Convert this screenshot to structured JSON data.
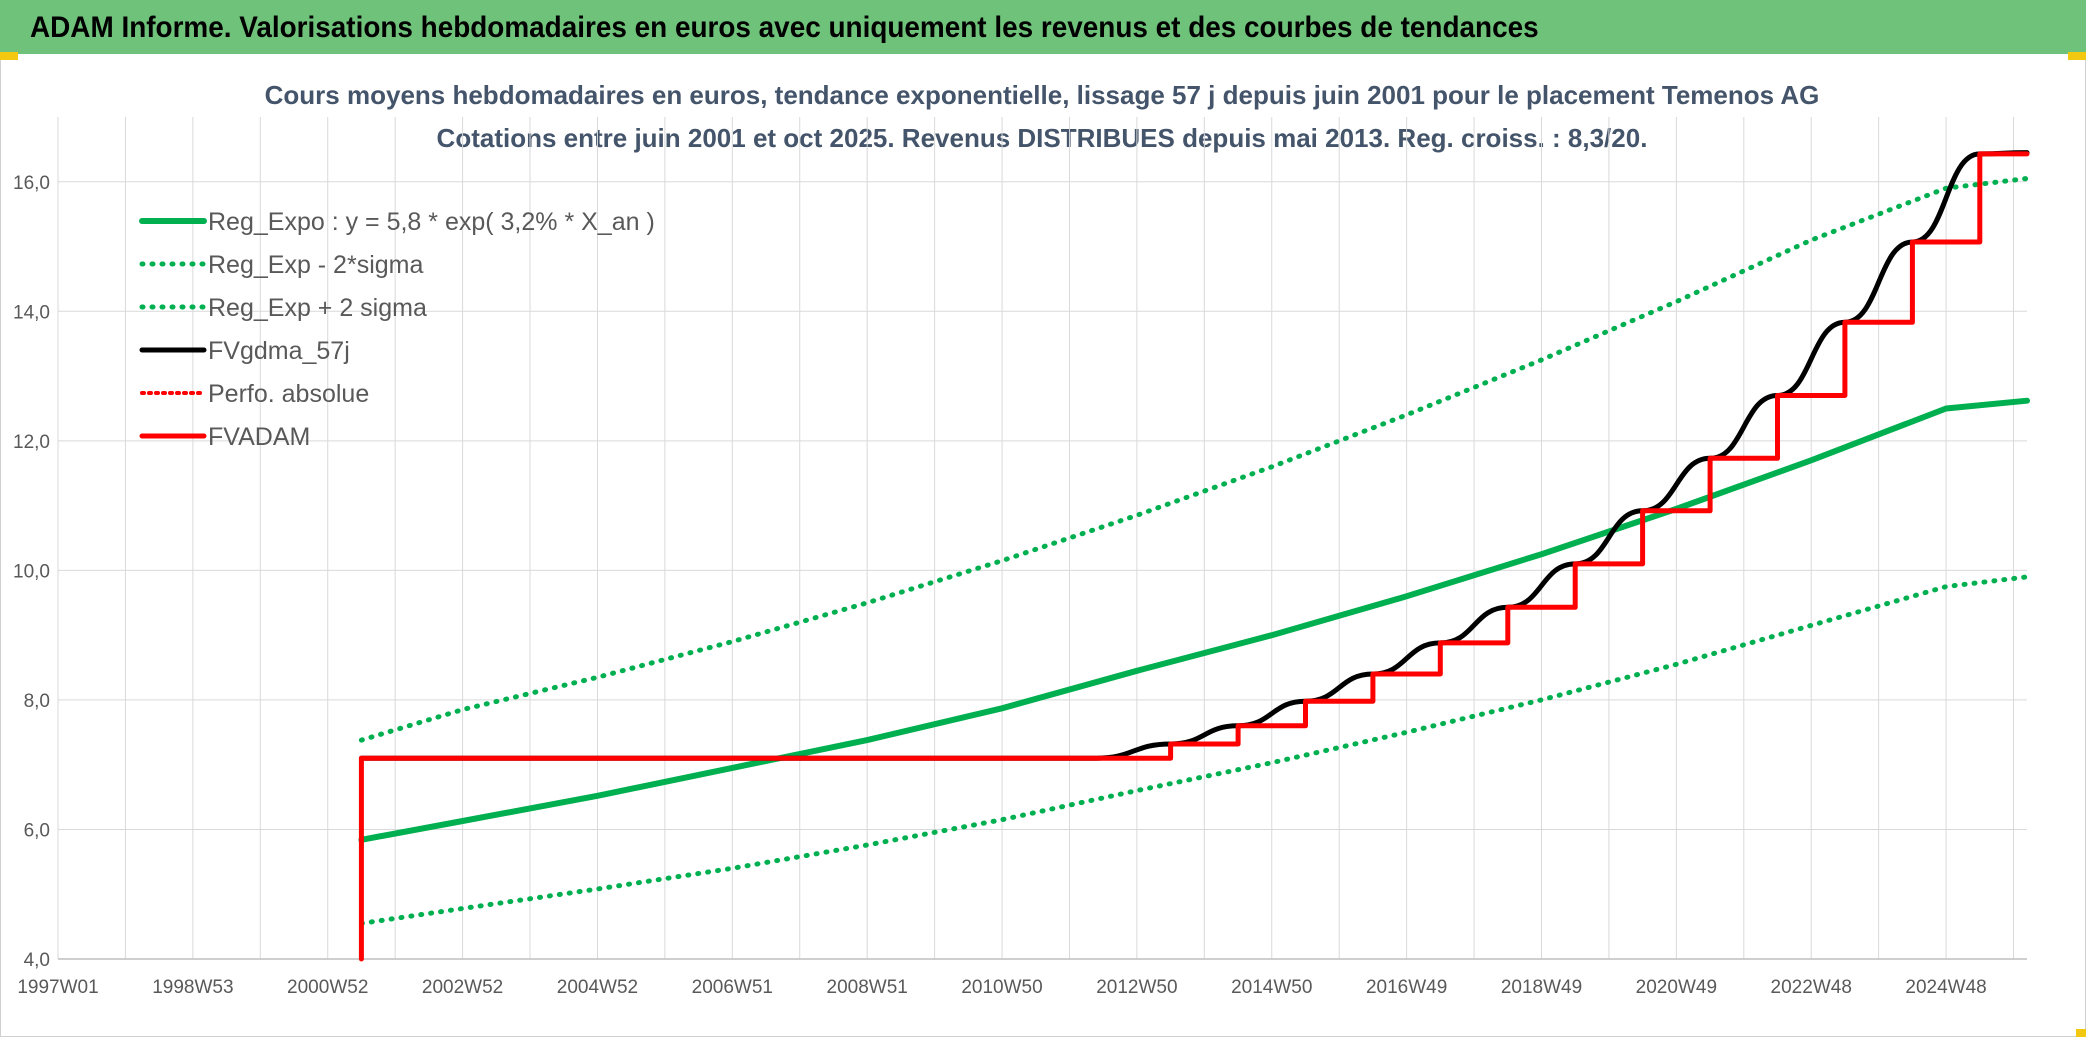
{
  "header": {
    "title": "ADAM Informe. Valorisations hebdomadaires en euros avec uniquement les revenus et des courbes de tendances"
  },
  "colors": {
    "banner": "#6fc27a",
    "trend_green": "#00b050",
    "black": "#000000",
    "red": "#ff0000",
    "title_text": "#44546a",
    "axis_text": "#595959",
    "grid": "#d9d9d9"
  },
  "chart_data": {
    "type": "line",
    "title": "Cours moyens hebdomadaires en euros, tendance exponentielle, lissage 57 j depuis juin 2001 pour le placement Temenos AG",
    "subtitle": "Cotations entre juin 2001 et oct 2025. Revenus DISTRIBUES depuis mai 2013. Reg. croiss. : 8,3/20.",
    "x_tick_labels": [
      "1997W01",
      "1998W53",
      "2000W52",
      "2002W52",
      "2004W52",
      "2006W51",
      "2008W51",
      "2010W50",
      "2012W50",
      "2014W50",
      "2016W49",
      "2018W49",
      "2020W49",
      "2022W48",
      "2024W48"
    ],
    "x_tick_years": [
      1997.0,
      1999.0,
      2001.0,
      2003.0,
      2005.0,
      2007.0,
      2009.0,
      2011.0,
      2013.0,
      2015.0,
      2017.0,
      2019.0,
      2021.0,
      2023.0,
      2025.0
    ],
    "xlim": [
      1997.0,
      2026.2
    ],
    "ylim": [
      4.0,
      17.0
    ],
    "y_ticks": [
      4.0,
      6.0,
      8.0,
      10.0,
      12.0,
      14.0,
      16.0
    ],
    "y_tick_labels": [
      "4,0",
      "6,0",
      "8,0",
      "10,0",
      "12,0",
      "14,0",
      "16,0"
    ],
    "grid": true,
    "legend_position": "top-left",
    "series": [
      {
        "name": "Reg_Expo : y = 5,8 * exp( 3,2% *  X_an )",
        "style": "solid",
        "color": "#00b050",
        "x": [
          2001.5,
          2003.0,
          2005.0,
          2007.0,
          2009.0,
          2011.0,
          2013.0,
          2015.0,
          2017.0,
          2019.0,
          2021.0,
          2023.0,
          2025.0,
          2026.2
        ],
        "y": [
          5.84,
          6.13,
          6.52,
          6.95,
          7.38,
          7.87,
          8.45,
          9.0,
          9.6,
          10.25,
          10.95,
          11.7,
          12.5,
          12.62
        ]
      },
      {
        "name": "Reg_Exp - 2*sigma",
        "style": "dotted",
        "color": "#00b050",
        "x": [
          2001.5,
          2003.0,
          2005.0,
          2007.0,
          2009.0,
          2011.0,
          2013.0,
          2015.0,
          2017.0,
          2019.0,
          2021.0,
          2023.0,
          2025.0,
          2026.2
        ],
        "y": [
          4.55,
          4.78,
          5.08,
          5.4,
          5.76,
          6.15,
          6.6,
          7.03,
          7.5,
          8.0,
          8.55,
          9.15,
          9.75,
          9.9
        ]
      },
      {
        "name": "Reg_Exp + 2 sigma",
        "style": "dotted",
        "color": "#00b050",
        "x": [
          2001.5,
          2003.0,
          2005.0,
          2007.0,
          2009.0,
          2011.0,
          2013.0,
          2015.0,
          2017.0,
          2019.0,
          2021.0,
          2023.0,
          2025.0,
          2026.2
        ],
        "y": [
          7.38,
          7.85,
          8.35,
          8.9,
          9.5,
          10.15,
          10.85,
          11.6,
          12.4,
          13.25,
          14.15,
          15.1,
          15.9,
          16.05
        ]
      },
      {
        "name": "FVgdma_57j",
        "style": "solid",
        "color": "#000000",
        "x": [
          2001.5,
          2012.4,
          2013.5,
          2014.5,
          2015.5,
          2016.5,
          2017.5,
          2018.5,
          2019.5,
          2020.5,
          2021.5,
          2022.5,
          2023.5,
          2024.5,
          2025.5,
          2026.2
        ],
        "y": [
          7.1,
          7.1,
          7.32,
          7.6,
          7.98,
          8.4,
          8.88,
          9.43,
          10.1,
          10.92,
          11.73,
          12.7,
          13.83,
          15.07,
          16.43,
          16.45
        ]
      },
      {
        "name": "Perfo. absolue",
        "style": "dotted",
        "color": "#ff0000",
        "x": [],
        "y": []
      },
      {
        "name": "FVADAM",
        "style": "solid",
        "color": "#ff0000",
        "x": [
          2001.5,
          2001.5,
          2012.4,
          2013.5,
          2014.5,
          2015.5,
          2016.5,
          2017.5,
          2018.5,
          2019.5,
          2020.5,
          2021.5,
          2022.5,
          2023.5,
          2024.5,
          2025.5,
          2026.2
        ],
        "y": [
          4.0,
          7.1,
          7.1,
          7.32,
          7.6,
          7.98,
          8.4,
          8.88,
          9.43,
          10.1,
          10.92,
          11.73,
          12.7,
          13.83,
          15.07,
          16.43,
          16.43
        ]
      }
    ]
  }
}
